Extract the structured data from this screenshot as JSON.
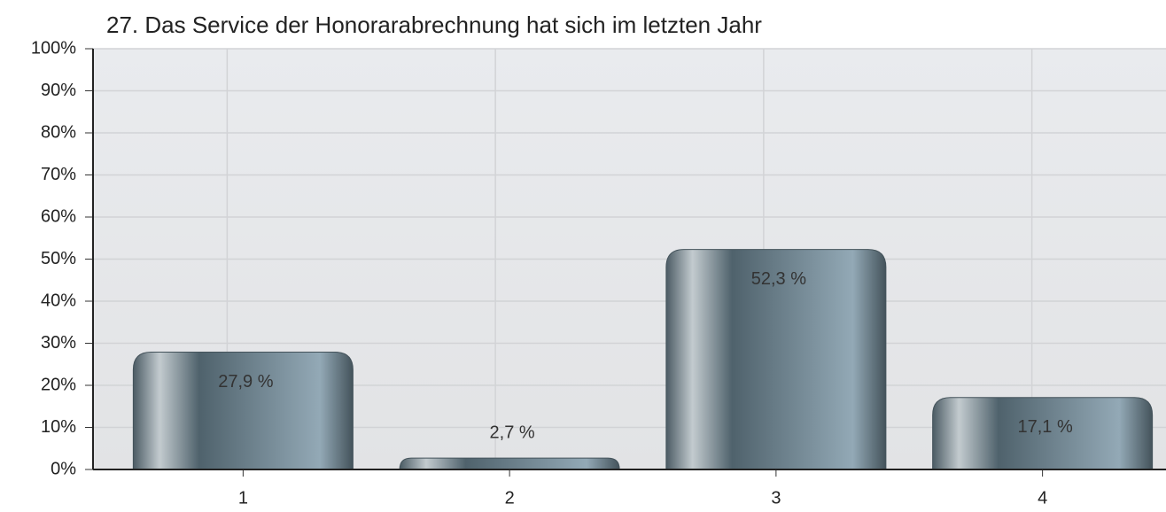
{
  "chart_data": {
    "type": "bar",
    "title": "27. Das Service der Honorarabrechnung hat sich im letzten Jahr",
    "categories": [
      "1",
      "2",
      "3",
      "4"
    ],
    "values": [
      27.9,
      2.7,
      52.3,
      17.1
    ],
    "value_labels": [
      "27,9 %",
      "2,7 %",
      "52,3 %",
      "17,1 %"
    ],
    "color": "#5f7480",
    "ylim": [
      0,
      100
    ],
    "yticks": [
      {
        "value": 0,
        "label": "0%"
      },
      {
        "value": 10,
        "label": "10%"
      },
      {
        "value": 20,
        "label": "20%"
      },
      {
        "value": 30,
        "label": "30%"
      },
      {
        "value": 40,
        "label": "40%"
      },
      {
        "value": 50,
        "label": "50%"
      },
      {
        "value": 60,
        "label": "60%"
      },
      {
        "value": 70,
        "label": "70%"
      },
      {
        "value": 80,
        "label": "80%"
      },
      {
        "value": 90,
        "label": "90%"
      },
      {
        "value": 100,
        "label": "100%"
      }
    ],
    "grid": true
  }
}
